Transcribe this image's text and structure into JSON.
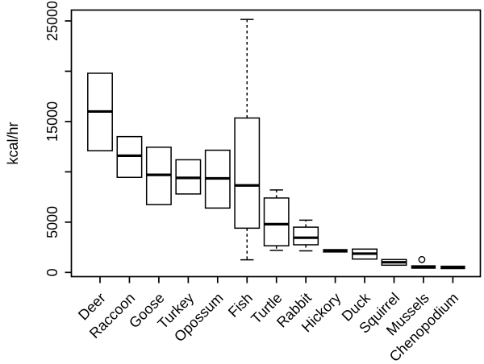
{
  "figure": {
    "background": "#ffffff",
    "foreground": "#000000"
  },
  "chart_data": {
    "type": "boxplot",
    "title": "",
    "xlabel": "",
    "ylabel": "kcal/hr",
    "ylim": [
      0,
      26000
    ],
    "grid": false,
    "legend": "none",
    "box_fill": "#ffffff",
    "line_color": "#000000",
    "yticks": [
      {
        "value": 0,
        "label": "0"
      },
      {
        "value": 5000,
        "label": "5000"
      },
      {
        "value": 10000,
        "label": ""
      },
      {
        "value": 15000,
        "label": "15000"
      },
      {
        "value": 20000,
        "label": ""
      },
      {
        "value": 25000,
        "label": "25000"
      }
    ],
    "categories": [
      "Deer",
      "Raccoon",
      "Goose",
      "Turkey",
      "Opossum",
      "Fish",
      "Turtle",
      "Rabbit",
      "Hickory",
      "Duck",
      "Squirrel",
      "Mussels",
      "Chenopodium"
    ],
    "boxes": [
      {
        "category": "Deer",
        "low": 12100,
        "q1": 12100,
        "median": 16000,
        "q3": 19800,
        "high": 19800,
        "outliers": []
      },
      {
        "category": "Raccoon",
        "low": 9450,
        "q1": 9450,
        "median": 11600,
        "q3": 13500,
        "high": 13500,
        "outliers": []
      },
      {
        "category": "Goose",
        "low": 6750,
        "q1": 6750,
        "median": 9700,
        "q3": 12450,
        "high": 12450,
        "outliers": []
      },
      {
        "category": "Turkey",
        "low": 7800,
        "q1": 7800,
        "median": 9400,
        "q3": 11200,
        "high": 11200,
        "outliers": []
      },
      {
        "category": "Opossum",
        "low": 6400,
        "q1": 6400,
        "median": 9350,
        "q3": 12150,
        "high": 12150,
        "outliers": []
      },
      {
        "category": "Fish",
        "low": 1250,
        "q1": 4400,
        "median": 8650,
        "q3": 15350,
        "high": 25150,
        "outliers": []
      },
      {
        "category": "Turtle",
        "low": 2200,
        "q1": 2650,
        "median": 4800,
        "q3": 7400,
        "high": 8200,
        "outliers": []
      },
      {
        "category": "Rabbit",
        "low": 2150,
        "q1": 2750,
        "median": 3450,
        "q3": 4500,
        "high": 5200,
        "outliers": []
      },
      {
        "category": "Hickory",
        "low": 2150,
        "q1": 2150,
        "median": 2150,
        "q3": 2150,
        "high": 2150,
        "outliers": []
      },
      {
        "category": "Duck",
        "low": 1330,
        "q1": 1330,
        "median": 1870,
        "q3": 2320,
        "high": 2320,
        "outliers": []
      },
      {
        "category": "Squirrel",
        "low": 720,
        "q1": 720,
        "median": 1010,
        "q3": 1280,
        "high": 1280,
        "outliers": []
      },
      {
        "category": "Mussels",
        "low": 540,
        "q1": 540,
        "median": 540,
        "q3": 540,
        "high": 540,
        "outliers": [
          1280
        ]
      },
      {
        "category": "Chenopodium",
        "low": 500,
        "q1": 500,
        "median": 500,
        "q3": 500,
        "high": 500,
        "outliers": []
      }
    ]
  }
}
